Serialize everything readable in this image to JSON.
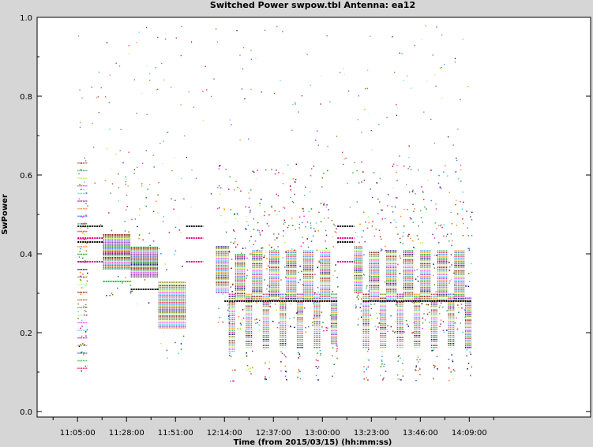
{
  "window": {
    "title": "Switched Power  swpow.tbl   Antenna: ea12"
  },
  "chart_data": {
    "type": "scatter",
    "title": "Switched Power  swpow.tbl   Antenna: ea12",
    "xlabel": "Time (from 2015/03/15) (hh:mm:ss)",
    "ylabel": "SwPower",
    "xlim": [
      "10:46:00",
      "15:06:00"
    ],
    "ylim": [
      0.0,
      1.0
    ],
    "x_ticks": [
      "11:05:00",
      "11:28:00",
      "11:51:00",
      "12:14:00",
      "12:37:00",
      "13:00:00",
      "13:23:00",
      "13:46:00",
      "14:09:00"
    ],
    "y_ticks": [
      "0.0",
      "0.2",
      "0.4",
      "0.6",
      "0.8",
      "1.0"
    ],
    "grid": false,
    "legend": "none",
    "series_colors": [
      "#e6194b",
      "#3cb44b",
      "#4363d8",
      "#f58231",
      "#911eb4",
      "#42d4f4",
      "#f032e6",
      "#bfef45",
      "#469990",
      "#9a6324",
      "#800000",
      "#aaffc3",
      "#808000",
      "#000075",
      "#c71585",
      "#00a000",
      "#ff8c00",
      "#1e90ff"
    ],
    "segments": [
      {
        "start": "11:05:00",
        "end": "11:09:30",
        "low": 0.1,
        "high": 0.64,
        "spike": true
      },
      {
        "start": "11:17:00",
        "end": "11:30:00",
        "low": 0.36,
        "high": 0.45
      },
      {
        "start": "11:30:00",
        "end": "11:43:00",
        "low": 0.34,
        "high": 0.42
      },
      {
        "start": "11:43:00",
        "end": "11:56:00",
        "low": 0.21,
        "high": 0.33
      },
      {
        "start": "12:10:00",
        "end": "12:16:00",
        "low": 0.3,
        "high": 0.42
      },
      {
        "start": "12:16:00",
        "end": "12:19:00",
        "low": 0.15,
        "high": 0.3
      },
      {
        "start": "12:19:00",
        "end": "12:24:00",
        "low": 0.28,
        "high": 0.4
      },
      {
        "start": "12:24:00",
        "end": "12:27:00",
        "low": 0.16,
        "high": 0.3
      },
      {
        "start": "12:27:00",
        "end": "12:32:00",
        "low": 0.28,
        "high": 0.41
      },
      {
        "start": "12:32:00",
        "end": "12:35:00",
        "low": 0.16,
        "high": 0.3
      },
      {
        "start": "12:35:00",
        "end": "12:40:00",
        "low": 0.28,
        "high": 0.41
      },
      {
        "start": "12:40:00",
        "end": "12:43:00",
        "low": 0.16,
        "high": 0.3
      },
      {
        "start": "12:43:00",
        "end": "12:48:00",
        "low": 0.28,
        "high": 0.41
      },
      {
        "start": "12:48:00",
        "end": "12:51:00",
        "low": 0.16,
        "high": 0.3
      },
      {
        "start": "12:51:00",
        "end": "12:56:00",
        "low": 0.28,
        "high": 0.41
      },
      {
        "start": "12:56:00",
        "end": "12:59:00",
        "low": 0.16,
        "high": 0.3
      },
      {
        "start": "12:59:00",
        "end": "13:04:00",
        "low": 0.28,
        "high": 0.41
      },
      {
        "start": "13:04:00",
        "end": "13:07:00",
        "low": 0.17,
        "high": 0.3
      },
      {
        "start": "13:15:00",
        "end": "13:19:00",
        "low": 0.3,
        "high": 0.42
      },
      {
        "start": "13:19:00",
        "end": "13:22:00",
        "low": 0.16,
        "high": 0.3
      },
      {
        "start": "13:22:00",
        "end": "13:27:00",
        "low": 0.28,
        "high": 0.41
      },
      {
        "start": "13:27:00",
        "end": "13:30:00",
        "low": 0.16,
        "high": 0.3
      },
      {
        "start": "13:30:00",
        "end": "13:35:00",
        "low": 0.28,
        "high": 0.41
      },
      {
        "start": "13:35:00",
        "end": "13:38:00",
        "low": 0.16,
        "high": 0.3
      },
      {
        "start": "13:38:00",
        "end": "13:43:00",
        "low": 0.28,
        "high": 0.41
      },
      {
        "start": "13:43:00",
        "end": "13:46:00",
        "low": 0.16,
        "high": 0.3
      },
      {
        "start": "13:46:00",
        "end": "13:51:00",
        "low": 0.28,
        "high": 0.41
      },
      {
        "start": "13:51:00",
        "end": "13:54:00",
        "low": 0.16,
        "high": 0.3
      },
      {
        "start": "13:54:00",
        "end": "13:59:00",
        "low": 0.28,
        "high": 0.41
      },
      {
        "start": "13:59:00",
        "end": "14:02:00",
        "low": 0.16,
        "high": 0.3
      },
      {
        "start": "14:02:00",
        "end": "14:07:00",
        "low": 0.28,
        "high": 0.41
      },
      {
        "start": "14:07:00",
        "end": "14:10:00",
        "low": 0.16,
        "high": 0.29
      }
    ],
    "level_lines": [
      {
        "start": "11:05:00",
        "end": "11:17:00",
        "y": 0.47,
        "color": "#000000"
      },
      {
        "start": "11:05:00",
        "end": "11:17:00",
        "y": 0.44,
        "color": "#e6007a"
      },
      {
        "start": "11:05:00",
        "end": "11:17:00",
        "y": 0.43,
        "color": "#000000"
      },
      {
        "start": "11:05:00",
        "end": "11:17:00",
        "y": 0.38,
        "color": "#c71585"
      },
      {
        "start": "11:17:00",
        "end": "11:30:00",
        "y": 0.33,
        "color": "#00d000"
      },
      {
        "start": "11:30:00",
        "end": "11:43:00",
        "y": 0.31,
        "color": "#000000"
      },
      {
        "start": "11:56:00",
        "end": "12:04:00",
        "y": 0.47,
        "color": "#000000"
      },
      {
        "start": "11:56:00",
        "end": "12:04:00",
        "y": 0.44,
        "color": "#e6007a"
      },
      {
        "start": "11:56:00",
        "end": "12:04:00",
        "y": 0.38,
        "color": "#c71585"
      },
      {
        "start": "12:14:00",
        "end": "13:07:00",
        "y": 0.28,
        "color": "#000000"
      },
      {
        "start": "13:07:00",
        "end": "13:15:00",
        "y": 0.47,
        "color": "#000000"
      },
      {
        "start": "13:07:00",
        "end": "13:15:00",
        "y": 0.44,
        "color": "#e6007a"
      },
      {
        "start": "13:07:00",
        "end": "13:15:00",
        "y": 0.43,
        "color": "#000000"
      },
      {
        "start": "13:07:00",
        "end": "13:15:00",
        "y": 0.38,
        "color": "#c71585"
      },
      {
        "start": "13:19:00",
        "end": "14:10:00",
        "y": 0.28,
        "color": "#000000"
      }
    ]
  }
}
